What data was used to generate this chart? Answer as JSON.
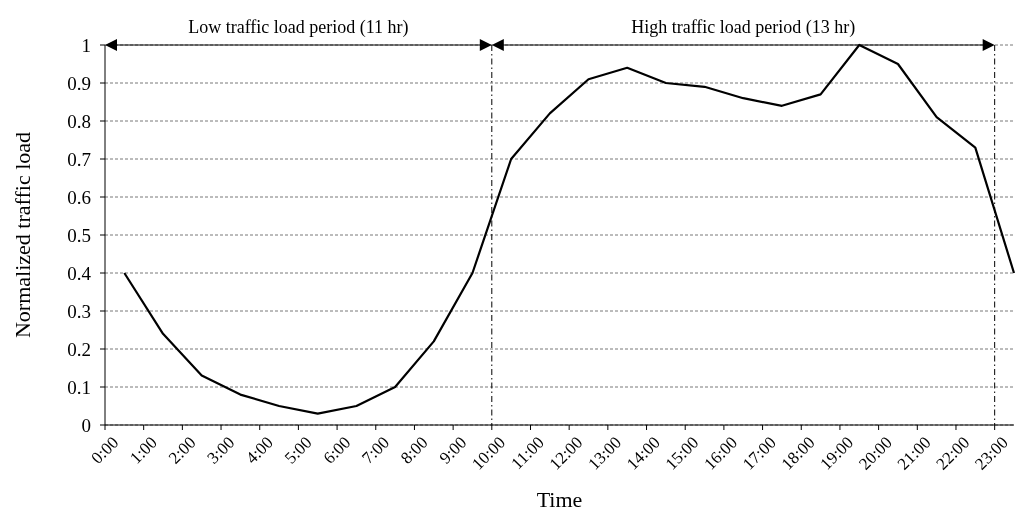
{
  "chart_data": {
    "type": "line",
    "xlabel": "Time",
    "ylabel": "Normalized traffic load",
    "x": [
      0.5,
      1.5,
      2.5,
      3.5,
      4.5,
      5.5,
      6.5,
      7.5,
      8.5,
      9.5,
      10.5,
      11.5,
      12.5,
      13.5,
      14.5,
      15.5,
      16.5,
      17.5,
      18.5,
      19.5,
      20.5,
      21.5,
      22.5,
      23.5
    ],
    "series": [
      {
        "color": "#000000",
        "values": [
          0.4,
          0.24,
          0.13,
          0.08,
          0.05,
          0.03,
          0.05,
          0.1,
          0.22,
          0.4,
          0.7,
          0.82,
          0.91,
          0.94,
          0.9,
          0.89,
          0.86,
          0.84,
          0.87,
          1.0,
          0.95,
          0.81,
          0.73,
          0.4
        ]
      }
    ],
    "xlim": [
      0,
      23.5
    ],
    "xticks": [
      {
        "value": 0,
        "label": "0:00"
      },
      {
        "value": 1,
        "label": "1:00"
      },
      {
        "value": 2,
        "label": "2:00"
      },
      {
        "value": 3,
        "label": "3:00"
      },
      {
        "value": 4,
        "label": "4:00"
      },
      {
        "value": 5,
        "label": "5:00"
      },
      {
        "value": 6,
        "label": "6:00"
      },
      {
        "value": 7,
        "label": "7:00"
      },
      {
        "value": 8,
        "label": "8:00"
      },
      {
        "value": 9,
        "label": "9:00"
      },
      {
        "value": 10,
        "label": "10:00"
      },
      {
        "value": 11,
        "label": "11:00"
      },
      {
        "value": 12,
        "label": "12:00"
      },
      {
        "value": 13,
        "label": "13:00"
      },
      {
        "value": 14,
        "label": "14:00"
      },
      {
        "value": 15,
        "label": "15:00"
      },
      {
        "value": 16,
        "label": "16:00"
      },
      {
        "value": 17,
        "label": "17:00"
      },
      {
        "value": 18,
        "label": "18:00"
      },
      {
        "value": 19,
        "label": "19:00"
      },
      {
        "value": 20,
        "label": "20:00"
      },
      {
        "value": 21,
        "label": "21:00"
      },
      {
        "value": 22,
        "label": "22:00"
      },
      {
        "value": 23,
        "label": "23:00"
      }
    ],
    "ylim": [
      0,
      1
    ],
    "yticks": [
      0,
      0.1,
      0.2,
      0.3,
      0.4,
      0.5,
      0.6,
      0.7,
      0.8,
      0.9,
      1
    ],
    "grid": "y",
    "marker": "none",
    "line_style": "solid",
    "ref_lines": [
      {
        "axis": "x",
        "value": 10,
        "line_style": "dashdot",
        "color": "#000000"
      },
      {
        "axis": "x",
        "value": 23,
        "line_style": "dashdot",
        "color": "#000000"
      }
    ],
    "annotations": [
      "Low traffic load period (11 hr)",
      "High traffic load period (13 hr)"
    ]
  }
}
